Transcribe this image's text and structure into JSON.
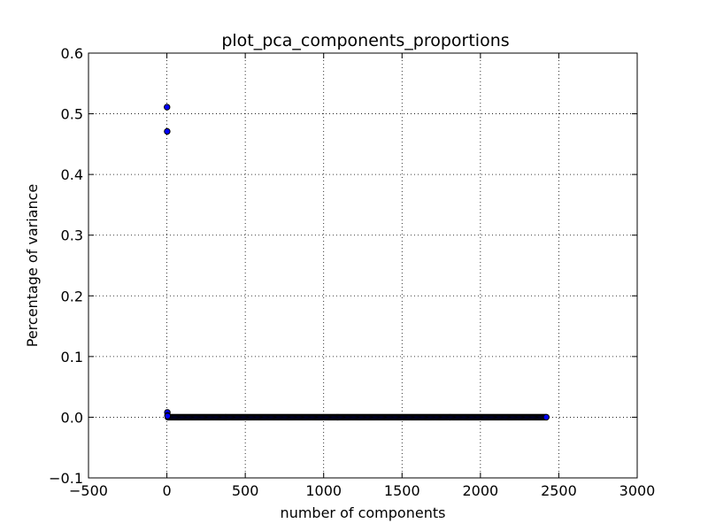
{
  "chart_data": {
    "type": "scatter",
    "title": "plot_pca_components_proportions",
    "xlabel": "number of components",
    "ylabel": "Percentage of variance",
    "xlim": [
      -500,
      3000
    ],
    "ylim": [
      -0.1,
      0.6
    ],
    "xticks": [
      -500,
      0,
      500,
      1000,
      1500,
      2000,
      2500,
      3000
    ],
    "yticks": [
      -0.1,
      0.0,
      0.1,
      0.2,
      0.3,
      0.4,
      0.5,
      0.6
    ],
    "xtick_labels": [
      "−500",
      "0",
      "500",
      "1000",
      "1500",
      "2000",
      "2500",
      "3000"
    ],
    "ytick_labels": [
      "−0.1",
      "0.0",
      "0.1",
      "0.2",
      "0.3",
      "0.4",
      "0.5",
      "0.6"
    ],
    "grid": true,
    "marker_color": "#0000ff",
    "marker_edge": "#000000",
    "series": [
      {
        "points": [
          {
            "x": 1,
            "y": 0.511
          },
          {
            "x": 2,
            "y": 0.471
          },
          {
            "x": 3,
            "y": 0.008
          },
          {
            "x": 4,
            "y": 0.003
          },
          {
            "x": 5,
            "y": 0.002
          },
          {
            "x": 2420,
            "y": 0.0
          }
        ],
        "dense_run": {
          "x_start": 6,
          "x_end": 2419,
          "y": 0.0
        }
      }
    ]
  }
}
